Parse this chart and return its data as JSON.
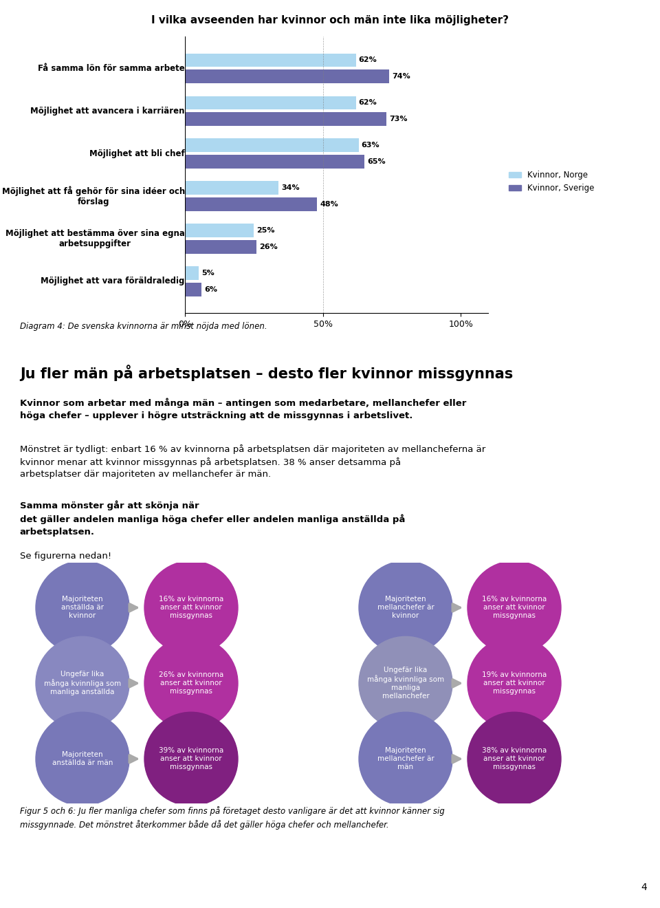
{
  "title": "I vilka avseenden har kvinnor och män inte lika möjligheter?",
  "categories": [
    "Få samma lön för samma arbete",
    "Möjlighet att avancera i karriären",
    "Möjlighet att bli chef",
    "Möjlighet att få gehör för sina idéer och\nförslag",
    "Möjlighet att bestämma över sina egna\narbetsuppgifter",
    "Möjlighet att vara föräldraledig"
  ],
  "norway_values": [
    62,
    62,
    63,
    34,
    25,
    5
  ],
  "sweden_values": [
    74,
    73,
    65,
    48,
    26,
    6
  ],
  "norway_color": "#add8f0",
  "sweden_color": "#6b6baa",
  "legend_norway": "Kvinnor, Norge",
  "legend_sweden": "Kvinnor, Sverige",
  "caption1": "Diagram 4: De svenska kvinnorna är minst nöjda med lönen.",
  "section_title": "Ju fler män på arbetsplatsen – desto fler kvinnor missgynnas",
  "caption2": "Figur 5 och 6: Ju fler manliga chefer som finns på företaget desto vanligare är det att kvinnor känner sig\nmissgynnade. Det mönstret återkommer både då det gäller höga chefer och mellanchefer.",
  "page_number": "4",
  "background_color": "#ffffff",
  "left_circles": [
    {
      "label": "Majoriteten\nanställda är\nkvinnor",
      "color": "#7878b8"
    },
    {
      "label": "Ungefär lika\nmånga kvinnliga som\nmanliga anställda",
      "color": "#8888c0"
    },
    {
      "label": "Majoriteten\nanställda är män",
      "color": "#7878b8"
    }
  ],
  "left_results": [
    {
      "label": "16% av kvinnorna\nanser att kvinnor\nmissgynnas",
      "color": "#b030a0"
    },
    {
      "label": "26% av kvinnorna\nanser att kvinnor\nmissgynnas",
      "color": "#b030a0"
    },
    {
      "label": "39% av kvinnorna\nanser att kvinnor\nmissgynnas",
      "color": "#802080"
    }
  ],
  "right_circles": [
    {
      "label": "Majoriteten\nmellanchefer är\nkvinnor",
      "color": "#7878b8"
    },
    {
      "label": "Ungefär lika\nmånga kvinnliga som\nmanliga\nmellanchefer",
      "color": "#9090b8"
    },
    {
      "label": "Majoriteten\nmellanchefer är\nmän",
      "color": "#7878b8"
    }
  ],
  "right_results": [
    {
      "label": "16% av kvinnorna\nanser att kvinnor\nmissgynnas",
      "color": "#b030a0"
    },
    {
      "label": "19% av kvinnorna\nanser att kvinnor\nmissgynnas",
      "color": "#b030a0"
    },
    {
      "label": "38% av kvinnorna\nanser att kvinnor\nmissgynnas",
      "color": "#802080"
    }
  ]
}
